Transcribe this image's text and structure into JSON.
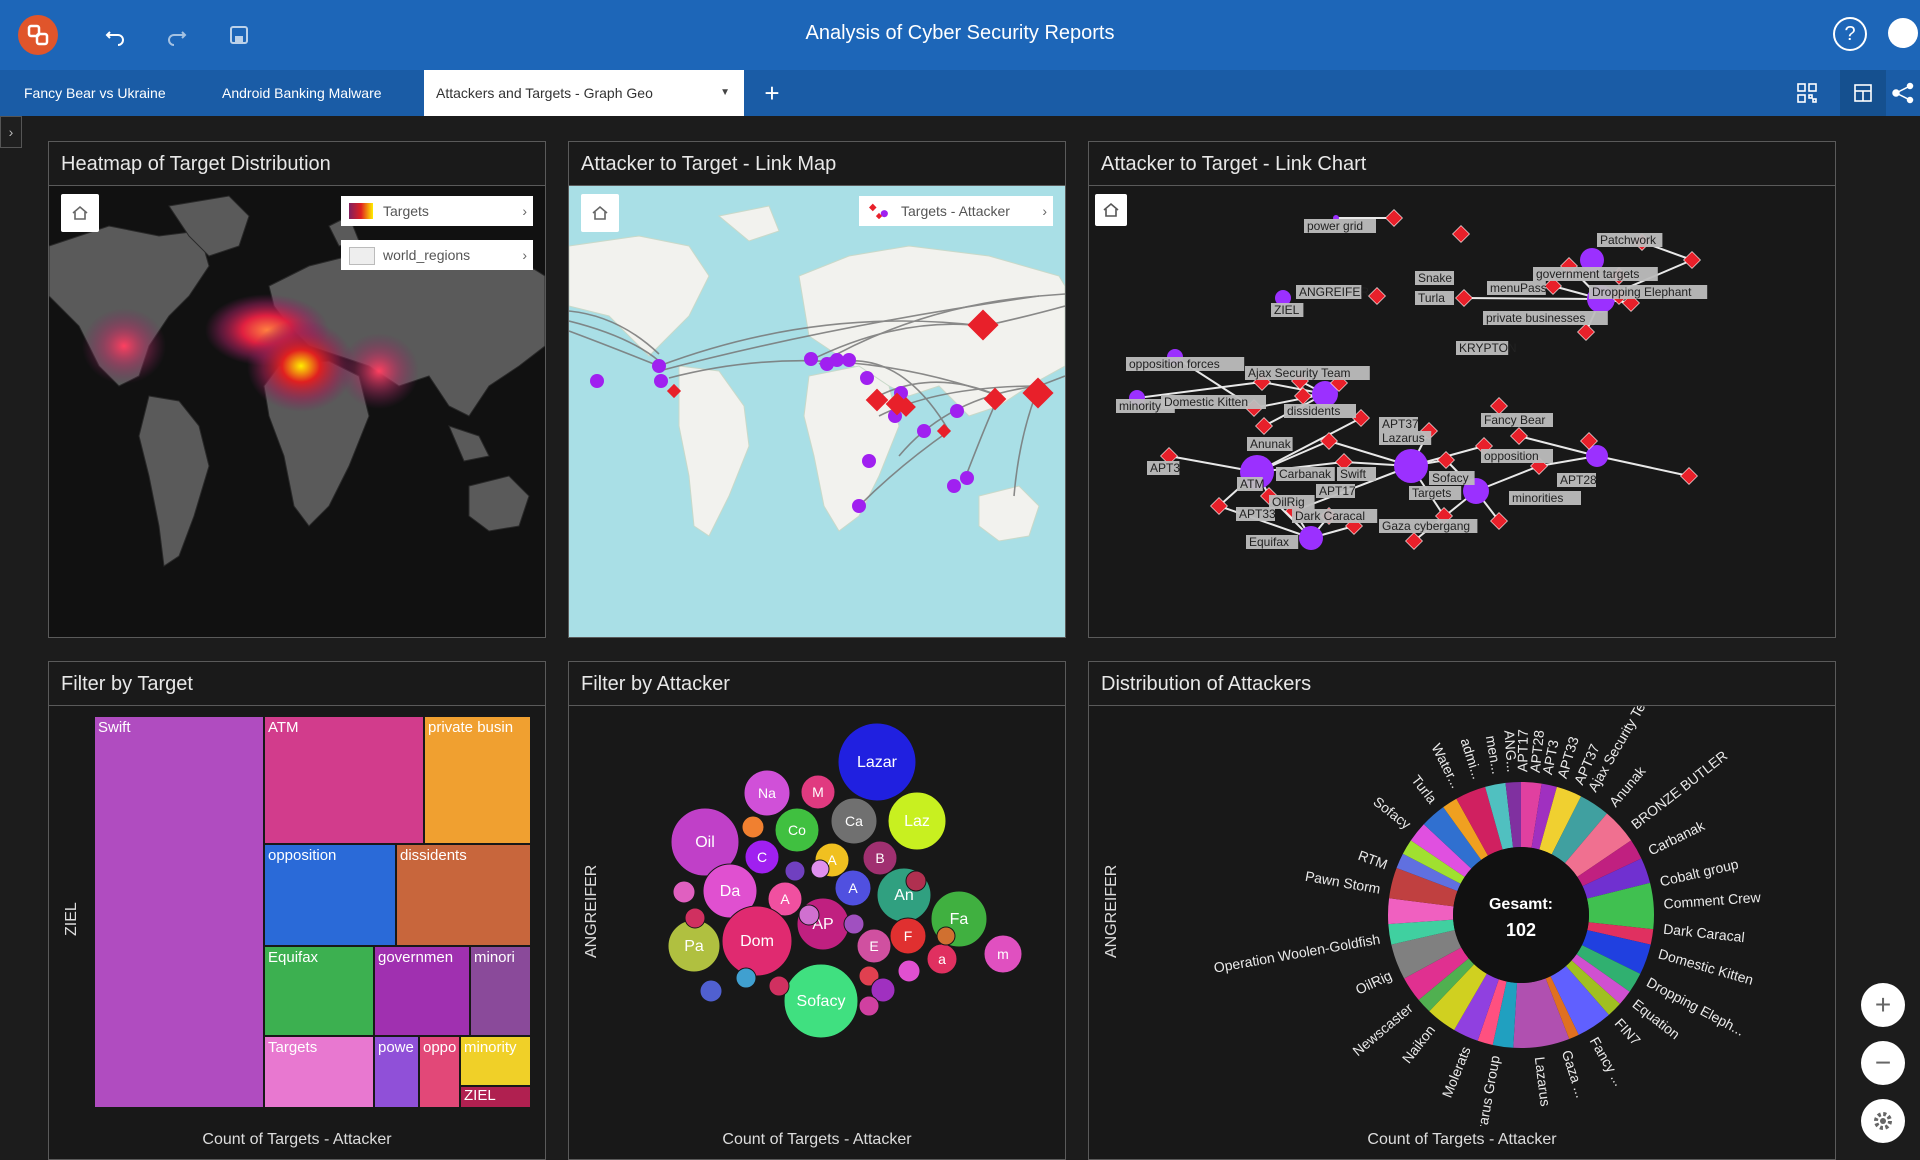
{
  "app": {
    "title": "Analysis of Cyber Security Reports"
  },
  "tabs": [
    {
      "label": "Fancy Bear vs Ukraine"
    },
    {
      "label": "Android Banking Malware"
    },
    {
      "label": "Attackers and Targets - Graph Geo"
    }
  ],
  "panels": {
    "heatmap": {
      "title": "Heatmap of Target Distribution",
      "legend": [
        "Targets",
        "world_regions"
      ]
    },
    "linkmap": {
      "title": "Attacker to Target - Link Map",
      "legend": "Targets - Attacker"
    },
    "linkchart": {
      "title": "Attacker to Target - Link Chart",
      "labels": [
        "power grid",
        "Patchwork",
        "ANGREIFER",
        "Snake",
        "government targets",
        "Turla",
        "menuPass",
        "Dropping Elephant",
        "ZIEL",
        "private businesses",
        "KRYPTON",
        "opposition forces",
        "Ajax Security Team",
        "minority",
        "Domestic Kitten",
        "dissidents",
        "APT37",
        "Lazarus",
        "Fancy Bear",
        "Anunak",
        "opposition",
        "APT3",
        "ATM",
        "Carbanak",
        "Swift",
        "Sofacy",
        "APT28",
        "APT17",
        "Targets",
        "minorities",
        "OilRig",
        "APT33",
        "Dark Caracal",
        "Gaza cybergang",
        "Equifax"
      ]
    },
    "filter_target": {
      "title": "Filter by Target",
      "axis": "ZIEL",
      "footer": "Count of Targets - Attacker",
      "cells": [
        "Swift",
        "ATM",
        "private busin",
        "opposition",
        "dissidents",
        "Equifax",
        "governmen",
        "minori",
        "Targets",
        "powe",
        "oppo",
        "minority",
        "ZIEL"
      ]
    },
    "filter_attacker": {
      "title": "Filter by Attacker",
      "axis": "ANGREIFER",
      "footer": "Count of Targets - Attacker",
      "bubbles": [
        "Lazar",
        "Na",
        "M",
        "Oil",
        "Co",
        "Ca",
        "Laz",
        "C",
        "A",
        "B",
        "Da",
        "A",
        "A",
        "An",
        "Fa",
        "Pa",
        "Dom",
        "AP",
        "F",
        "E",
        "a",
        "m",
        "Sofacy"
      ]
    },
    "distribution": {
      "title": "Distribution of Attackers",
      "axis": "ANGREIFER",
      "footer": "Count of Targets - Attacker",
      "center_label": "Gesamt:",
      "center_value": "102",
      "labels": [
        "Ajax Security Team",
        "Anunak",
        "BRONZE BUTLER",
        "Carbanak",
        "Cobalt group",
        "Comment Crew",
        "Dark Caracal",
        "Domestic Kitten",
        "Dropping Eleph...",
        "Equation",
        "FIN7",
        "Fancy ...",
        "Gaza ...",
        "Lazarus",
        "Lazarus Group",
        "Molerats",
        "Naikon",
        "Newscaster",
        "OilRig",
        "Operation Woolen-Goldfish",
        "Pawn Storm",
        "RTM",
        "Sofacy",
        "Turla",
        "Water...",
        "admi...",
        "men...",
        "ANG...",
        "APT17",
        "APT28",
        "APT3",
        "APT33",
        "APT37"
      ]
    }
  },
  "colors": {
    "topbar": "#1d66b8",
    "tabbar": "#1a5ca6",
    "attacker_node": "#9b30ff",
    "target_node": "#e8202a"
  },
  "icons": [
    "app-logo-icon",
    "undo-icon",
    "redo-icon",
    "save-icon",
    "help-icon",
    "user-avatar",
    "add-tab-icon",
    "qr-grid-icon",
    "layout-icon",
    "graph-network-icon",
    "home-icon",
    "zoom-in-icon",
    "zoom-out-icon",
    "settings-gear-icon"
  ]
}
